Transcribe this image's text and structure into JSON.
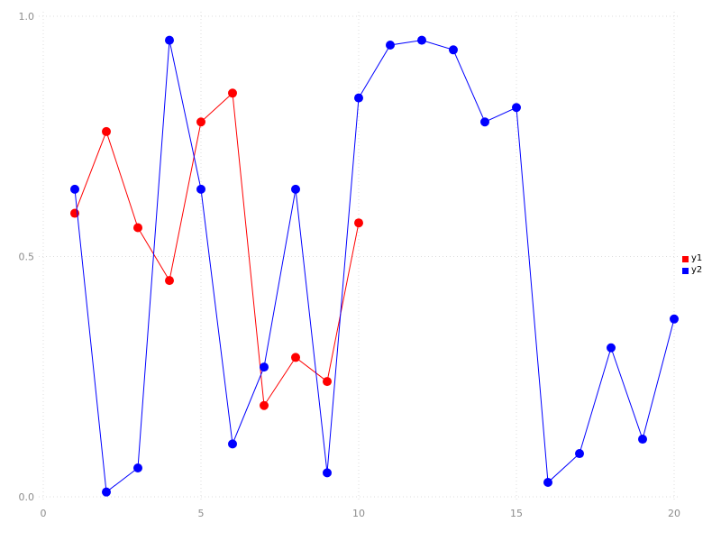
{
  "chart_data": {
    "type": "line",
    "title": "",
    "xlabel": "",
    "ylabel": "",
    "xlim": [
      0,
      20
    ],
    "ylim": [
      0,
      1
    ],
    "x_ticks": [
      0,
      5,
      10,
      15,
      20
    ],
    "x_tick_labels": [
      "0",
      "5",
      "10",
      "15",
      "20"
    ],
    "y_ticks": [
      0,
      0.5,
      1
    ],
    "y_tick_labels": [
      "0.0",
      "0.5",
      "1.0"
    ],
    "grid": true,
    "grid_style": "dotted",
    "legend_position": "right",
    "series": [
      {
        "name": "y1",
        "color": "#ff0000",
        "marker": "circle",
        "x": [
          1,
          2,
          3,
          4,
          5,
          6,
          7,
          8,
          9,
          10
        ],
        "values": [
          0.59,
          0.76,
          0.56,
          0.45,
          0.78,
          0.84,
          0.19,
          0.29,
          0.24,
          0.57
        ]
      },
      {
        "name": "y2",
        "color": "#0000ff",
        "marker": "circle",
        "x": [
          1,
          2,
          3,
          4,
          5,
          6,
          7,
          8,
          9,
          10,
          11,
          12,
          13,
          14,
          15,
          16,
          17,
          18,
          19,
          20
        ],
        "values": [
          0.64,
          0.01,
          0.06,
          0.95,
          0.64,
          0.11,
          0.27,
          0.64,
          0.05,
          0.83,
          0.94,
          0.95,
          0.93,
          0.78,
          0.81,
          0.03,
          0.09,
          0.31,
          0.12,
          0.37
        ]
      }
    ]
  }
}
